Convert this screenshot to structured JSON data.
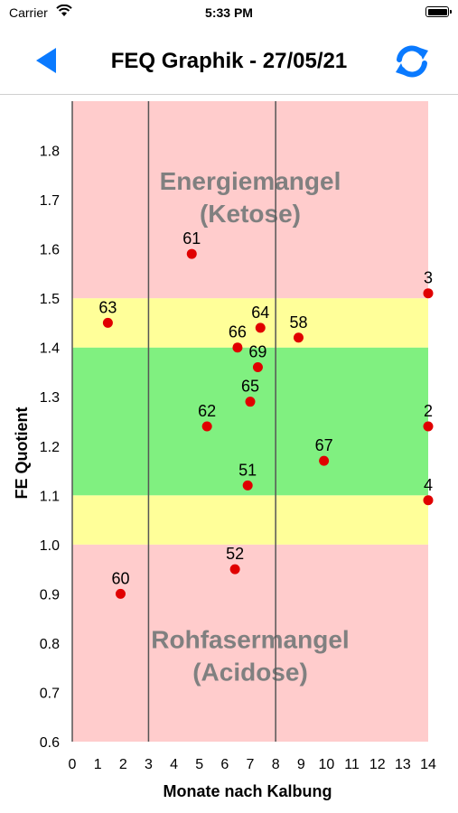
{
  "status_bar": {
    "carrier": "Carrier",
    "time": "5:33 PM"
  },
  "nav": {
    "title": "FEQ Graphik - 27/05/21",
    "back_icon": "back-triangle-icon",
    "refresh_icon": "refresh-icon",
    "accent_color": "#0a7aff"
  },
  "chart_data": {
    "type": "scatter",
    "xlabel": "Monate nach Kalbung",
    "ylabel": "FE Quotient",
    "xlim": [
      0,
      14
    ],
    "ylim": [
      0.6,
      1.9
    ],
    "x_ticks": [
      0,
      1,
      2,
      3,
      4,
      5,
      6,
      7,
      8,
      9,
      10,
      11,
      12,
      13,
      14
    ],
    "y_ticks": [
      0.6,
      0.7,
      0.8,
      0.9,
      1.0,
      1.1,
      1.2,
      1.3,
      1.4,
      1.5,
      1.6,
      1.7,
      1.8
    ],
    "bands": [
      {
        "from": 0.6,
        "to": 1.0,
        "color": "#ffcccc"
      },
      {
        "from": 1.0,
        "to": 1.1,
        "color": "#ffff99"
      },
      {
        "from": 1.1,
        "to": 1.4,
        "color": "#80f080"
      },
      {
        "from": 1.4,
        "to": 1.5,
        "color": "#ffff99"
      },
      {
        "from": 1.5,
        "to": 1.9,
        "color": "#ffcccc"
      }
    ],
    "vertical_lines": [
      3,
      8
    ],
    "annotations": [
      {
        "lines": [
          "Energiemangel",
          "(Ketose)"
        ],
        "x": 7,
        "y": 1.72
      },
      {
        "lines": [
          "Rohfasermangel",
          "(Acidose)"
        ],
        "x": 7,
        "y": 0.79
      }
    ],
    "point_color": "#e00000",
    "points": [
      {
        "label": "61",
        "x": 4.7,
        "y": 1.59
      },
      {
        "label": "3",
        "x": 14.0,
        "y": 1.51
      },
      {
        "label": "63",
        "x": 1.4,
        "y": 1.45
      },
      {
        "label": "64",
        "x": 7.4,
        "y": 1.44
      },
      {
        "label": "58",
        "x": 8.9,
        "y": 1.42
      },
      {
        "label": "66",
        "x": 6.5,
        "y": 1.4
      },
      {
        "label": "69",
        "x": 7.3,
        "y": 1.36
      },
      {
        "label": "65",
        "x": 7.0,
        "y": 1.29
      },
      {
        "label": "62",
        "x": 5.3,
        "y": 1.24
      },
      {
        "label": "2",
        "x": 14.0,
        "y": 1.24
      },
      {
        "label": "67",
        "x": 9.9,
        "y": 1.17
      },
      {
        "label": "51",
        "x": 6.9,
        "y": 1.12
      },
      {
        "label": "4",
        "x": 14.0,
        "y": 1.09
      },
      {
        "label": "52",
        "x": 6.4,
        "y": 0.95
      },
      {
        "label": "60",
        "x": 1.9,
        "y": 0.9
      }
    ]
  }
}
